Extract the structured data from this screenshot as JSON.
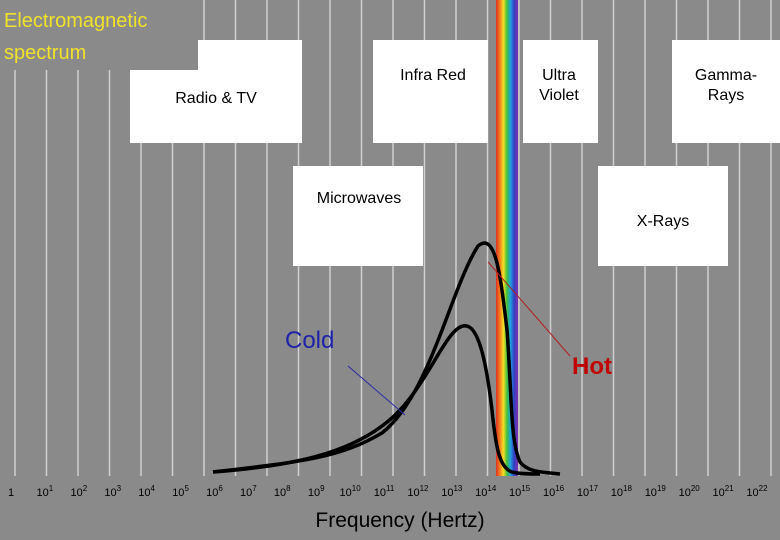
{
  "title": [
    "Electromagnetic",
    "spectrum"
  ],
  "colors": {
    "background": "#8a8a8a",
    "title": "#f0e22a",
    "cold_label": "#1e22a8",
    "hot_label": "#c00000",
    "cold_pointer": "#2a2aa0",
    "hot_pointer": "#b02020",
    "box_fill": "#ffffff",
    "curve": "#000000"
  },
  "boxes": [
    {
      "id": "radio-tv",
      "lines": [
        "Radio & TV"
      ]
    },
    {
      "id": "infra-red",
      "lines": [
        "Infra Red"
      ]
    },
    {
      "id": "ultra-violet",
      "lines": [
        "Ultra",
        "Violet"
      ]
    },
    {
      "id": "gamma-rays",
      "lines": [
        "Gamma-",
        "Rays"
      ]
    },
    {
      "id": "microwaves",
      "lines": [
        "Microwaves"
      ]
    },
    {
      "id": "x-rays",
      "lines": [
        "X-Rays"
      ]
    }
  ],
  "curve_labels": {
    "cold": "Cold",
    "hot": "Hot"
  },
  "axis": {
    "xlabel": "Frequency (Hertz)",
    "ticks": [
      {
        "base": "1",
        "exp": ""
      },
      {
        "base": "10",
        "exp": "1"
      },
      {
        "base": "10",
        "exp": "2"
      },
      {
        "base": "10",
        "exp": "3"
      },
      {
        "base": "10",
        "exp": "4"
      },
      {
        "base": "10",
        "exp": "5"
      },
      {
        "base": "10",
        "exp": "6"
      },
      {
        "base": "10",
        "exp": "7"
      },
      {
        "base": "10",
        "exp": "8"
      },
      {
        "base": "10",
        "exp": "9"
      },
      {
        "base": "10",
        "exp": "10"
      },
      {
        "base": "10",
        "exp": "11"
      },
      {
        "base": "10",
        "exp": "12"
      },
      {
        "base": "10",
        "exp": "13"
      },
      {
        "base": "10",
        "exp": "14"
      },
      {
        "base": "10",
        "exp": "15"
      },
      {
        "base": "10",
        "exp": "16"
      },
      {
        "base": "10",
        "exp": "17"
      },
      {
        "base": "10",
        "exp": "18"
      },
      {
        "base": "10",
        "exp": "19"
      },
      {
        "base": "10",
        "exp": "20"
      },
      {
        "base": "10",
        "exp": "21"
      },
      {
        "base": "10",
        "exp": "22"
      }
    ]
  }
}
